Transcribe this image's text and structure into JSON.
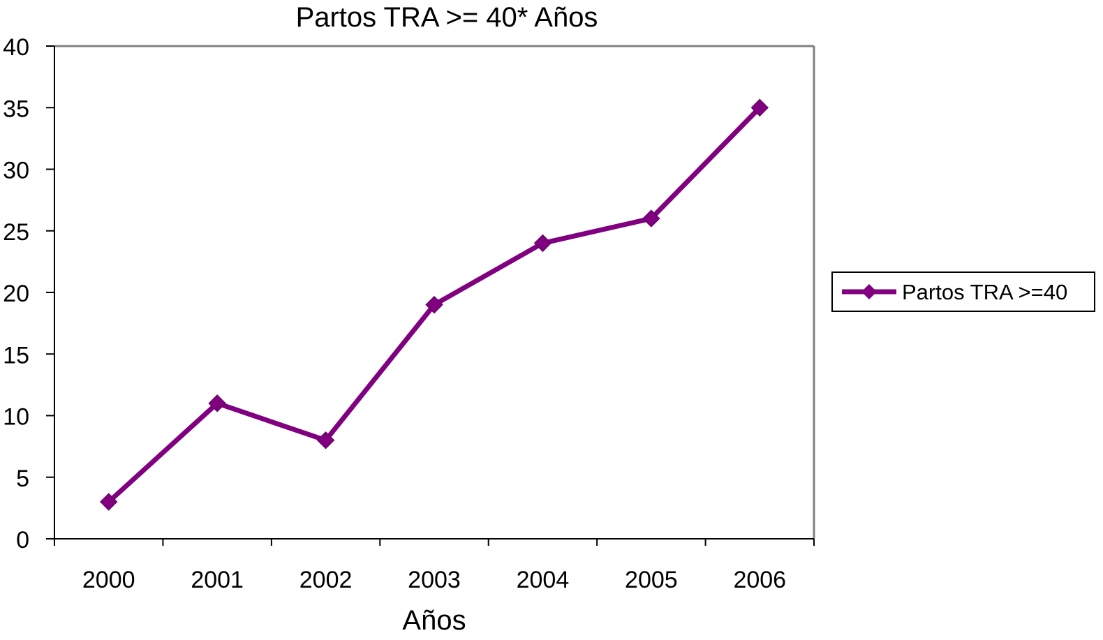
{
  "chart_data": {
    "type": "line",
    "title": "Partos TRA >= 40* Años",
    "xlabel": "Años",
    "ylabel": "",
    "categories": [
      "2000",
      "2001",
      "2002",
      "2003",
      "2004",
      "2005",
      "2006"
    ],
    "series": [
      {
        "name": "Partos TRA >=40",
        "values": [
          3,
          11,
          8,
          19,
          24,
          26,
          35
        ],
        "color": "#800080"
      }
    ],
    "ylim": [
      0,
      40
    ],
    "yticks": [
      0,
      5,
      10,
      15,
      20,
      25,
      30,
      35,
      40
    ],
    "grid": false,
    "legend": "right",
    "marker": "diamond"
  }
}
